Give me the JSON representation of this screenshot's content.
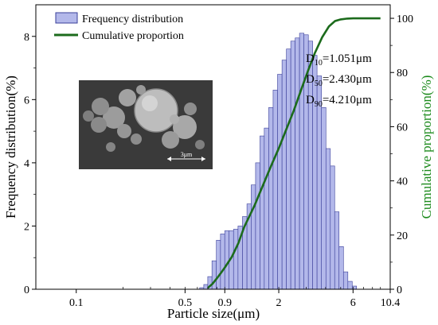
{
  "colors": {
    "bar_fill": "#b3b8ea",
    "bar_stroke": "#3a3f9a",
    "cumulative_line": "#1c6b1c",
    "right_axis_label": "#1c8a1c",
    "axis": "#000000",
    "sem_background": "#4a4a4a"
  },
  "chart_data": {
    "type": "bar",
    "x_scale": "log",
    "xlabel": "Particle size(μm)",
    "ylabel": "Frequency distribution(%)",
    "y2label": "Cumulative proportion(%)",
    "xlim": [
      0.055,
      10.4
    ],
    "ylim": [
      0,
      9
    ],
    "y2lim": [
      0,
      105
    ],
    "x_ticks": [
      "0.1",
      "0.5",
      "0.9",
      "2",
      "6",
      "10.4"
    ],
    "x_tick_values": [
      0.1,
      0.5,
      0.9,
      2,
      6,
      10.4
    ],
    "y_ticks": [
      0,
      2,
      4,
      6,
      8
    ],
    "y2_ticks": [
      0,
      20,
      40,
      60,
      80,
      100
    ],
    "legend_position": "top-left",
    "series": [
      {
        "name": "Frequency distribution",
        "type": "bar",
        "x": [
          0.64,
          0.68,
          0.72,
          0.77,
          0.82,
          0.87,
          0.93,
          0.99,
          1.06,
          1.13,
          1.21,
          1.29,
          1.37,
          1.47,
          1.56,
          1.67,
          1.78,
          1.9,
          2.03,
          2.17,
          2.31,
          2.47,
          2.63,
          2.81,
          3.0,
          3.2,
          3.41,
          3.64,
          3.89,
          4.15,
          4.43,
          4.72,
          5.04,
          5.38,
          5.74,
          6.12
        ],
        "values": [
          0.05,
          0.15,
          0.4,
          0.9,
          1.55,
          1.75,
          1.85,
          1.85,
          1.9,
          2.0,
          2.3,
          2.7,
          3.3,
          4.0,
          4.85,
          5.1,
          5.75,
          6.3,
          6.8,
          7.25,
          7.6,
          7.85,
          7.95,
          8.1,
          8.05,
          7.85,
          7.4,
          6.75,
          5.75,
          4.45,
          3.9,
          2.45,
          1.35,
          0.55,
          0.25,
          0.1
        ]
      },
      {
        "name": "Cumulative proportion",
        "type": "line",
        "axis": "right",
        "x": [
          0.7,
          0.75,
          0.8,
          0.85,
          0.9,
          1.0,
          1.1,
          1.2,
          1.4,
          1.6,
          1.8,
          2.0,
          2.2,
          2.5,
          2.8,
          3.1,
          3.4,
          3.8,
          4.2,
          4.6,
          5.0,
          5.5,
          6.0,
          7.0,
          8.0,
          9.0
        ],
        "y": [
          0.5,
          2,
          4,
          6,
          8,
          12,
          17,
          23,
          31,
          39,
          46,
          52,
          58,
          66,
          74,
          81,
          87,
          93,
          97,
          99,
          99.6,
          99.9,
          100,
          100,
          100,
          100
        ]
      }
    ],
    "annotations": [
      {
        "name": "D",
        "sub": "10",
        "text": "=1.051μm"
      },
      {
        "name": "D",
        "sub": "50",
        "text": "=2.430μm"
      },
      {
        "name": "D",
        "sub": "90",
        "text": "=4.210μm"
      }
    ],
    "inset": {
      "scale_bar_label": "3μm"
    }
  }
}
